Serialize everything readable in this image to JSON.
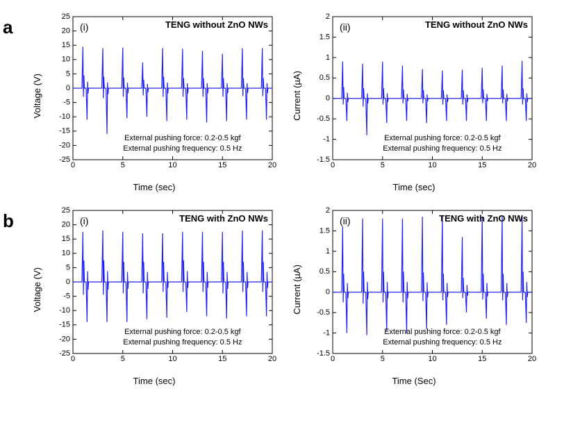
{
  "figure": {
    "background_color": "#ffffff",
    "line_color": "#2222ee",
    "axis_color": "#000000",
    "tick_fontsize": 11,
    "label_fontsize": 13,
    "rowlabel_fontsize": 26
  },
  "rows": [
    {
      "label": "a",
      "panels": [
        {
          "sub": "(i)",
          "title": "TENG without ZnO NWs",
          "xlabel": "Time (sec)",
          "ylabel": "Voltage (V)",
          "xlim": [
            0,
            20
          ],
          "ylim": [
            -25,
            25
          ],
          "xticks": [
            0,
            5,
            10,
            15,
            20
          ],
          "yticks": [
            -25,
            -20,
            -15,
            -10,
            -5,
            0,
            5,
            10,
            15,
            20,
            25
          ],
          "caption": [
            "External pushing force: 0.2-0.5 kgf",
            "External pushing frequency: 0.5 Hz"
          ],
          "spikes": {
            "x": [
              1,
              3,
              5,
              7,
              9,
              11,
              13,
              15,
              17,
              19
            ],
            "pos": [
              14.5,
              14.0,
              14.2,
              9.0,
              14.0,
              13.8,
              13.0,
              12.0,
              14.0,
              14.0
            ],
            "neg": [
              -11.0,
              -16.0,
              -10.5,
              -10.0,
              -11.5,
              -11.0,
              -12.0,
              -11.5,
              -11.0,
              -11.0
            ],
            "pos2": [
              4.5,
              4.0,
              3.8,
              3.0,
              4.0,
              3.5,
              3.5,
              3.5,
              3.5,
              3.5
            ],
            "neg2": [
              -3.0,
              -3.5,
              -3.0,
              -2.5,
              -3.0,
              -3.0,
              -3.0,
              -3.0,
              -2.8,
              -2.8
            ]
          }
        },
        {
          "sub": "(ii)",
          "title": "TENG without ZnO NWs",
          "xlabel": "Time (sec)",
          "ylabel": "Current (µA)",
          "xlim": [
            0,
            20
          ],
          "ylim": [
            -1.5,
            2.0
          ],
          "xticks": [
            0,
            5,
            10,
            15,
            20
          ],
          "yticks": [
            -1.5,
            -1.0,
            -0.5,
            0.0,
            0.5,
            1.0,
            1.5,
            2.0
          ],
          "caption": [
            "External pushing force: 0.2-0.5 kgf",
            "External pushing frequency: 0.5 Hz"
          ],
          "spikes": {
            "x": [
              1,
              3,
              5,
              7,
              9,
              11,
              13,
              15,
              17,
              19
            ],
            "pos": [
              0.9,
              0.85,
              0.9,
              0.8,
              0.72,
              0.68,
              0.7,
              0.75,
              0.8,
              0.92
            ],
            "neg": [
              -0.55,
              -0.9,
              -0.6,
              -0.55,
              -0.6,
              -0.55,
              -0.55,
              -0.55,
              -0.55,
              -0.55
            ],
            "pos2": [
              0.28,
              0.25,
              0.25,
              0.22,
              0.2,
              0.2,
              0.2,
              0.22,
              0.22,
              0.25
            ],
            "neg2": [
              -0.15,
              -0.2,
              -0.15,
              -0.12,
              -0.12,
              -0.15,
              -0.15,
              -0.12,
              -0.12,
              -0.15
            ]
          }
        }
      ]
    },
    {
      "label": "b",
      "panels": [
        {
          "sub": "(i)",
          "title": "TENG with ZnO NWs",
          "xlabel": "Time (sec)",
          "ylabel": "Voltage (V)",
          "xlim": [
            0,
            20
          ],
          "ylim": [
            -25,
            25
          ],
          "xticks": [
            0,
            5,
            10,
            15,
            20
          ],
          "yticks": [
            -25,
            -20,
            -15,
            -10,
            -5,
            0,
            5,
            10,
            15,
            20,
            25
          ],
          "caption": [
            "External pushing force: 0.2-0.5 kgf",
            "External pushing frequency: 0.5 Hz"
          ],
          "spikes": {
            "x": [
              1,
              3,
              5,
              7,
              9,
              11,
              13,
              15,
              17,
              19
            ],
            "pos": [
              17.5,
              18.0,
              17.5,
              17.0,
              17.0,
              17.5,
              17.5,
              17.5,
              18.0,
              18.0
            ],
            "neg": [
              -14.0,
              -14.0,
              -14.0,
              -13.0,
              -12.5,
              -10.5,
              -12.0,
              -12.8,
              -12.0,
              -12.0
            ],
            "pos2": [
              7.5,
              7.5,
              7.0,
              7.0,
              7.0,
              7.5,
              7.0,
              7.0,
              7.0,
              7.0
            ],
            "neg2": [
              -4.5,
              -4.5,
              -4.0,
              -4.0,
              -3.5,
              -3.5,
              -3.5,
              -4.0,
              -3.5,
              -3.5
            ]
          }
        },
        {
          "sub": "(ii)",
          "title": "TENG with ZnO NWs",
          "xlabel": "Time (Sec)",
          "ylabel": "Current (µA)",
          "xlim": [
            0,
            20
          ],
          "ylim": [
            -1.5,
            2.0
          ],
          "xticks": [
            0,
            5,
            10,
            15,
            20
          ],
          "yticks": [
            -1.5,
            -1.0,
            -0.5,
            0.0,
            0.5,
            1.0,
            1.5,
            2.0
          ],
          "caption": [
            "External pushing force: 0.2-0.5 kgf",
            "External pushing frequency: 0.5 Hz"
          ],
          "spikes": {
            "x": [
              1,
              3,
              5,
              7,
              9,
              11,
              13,
              15,
              17,
              19
            ],
            "pos": [
              1.6,
              1.8,
              1.8,
              1.8,
              1.85,
              1.85,
              1.35,
              1.85,
              1.85,
              1.85
            ],
            "neg": [
              -1.0,
              -1.05,
              -0.95,
              -1.0,
              -0.9,
              -0.8,
              -0.5,
              -0.65,
              -0.8,
              -0.75
            ],
            "pos2": [
              0.45,
              0.5,
              0.5,
              0.5,
              0.48,
              0.45,
              0.35,
              0.45,
              0.45,
              0.5
            ],
            "neg2": [
              -0.25,
              -0.28,
              -0.25,
              -0.25,
              -0.22,
              -0.2,
              -0.15,
              -0.18,
              -0.2,
              -0.2
            ]
          }
        }
      ]
    }
  ]
}
